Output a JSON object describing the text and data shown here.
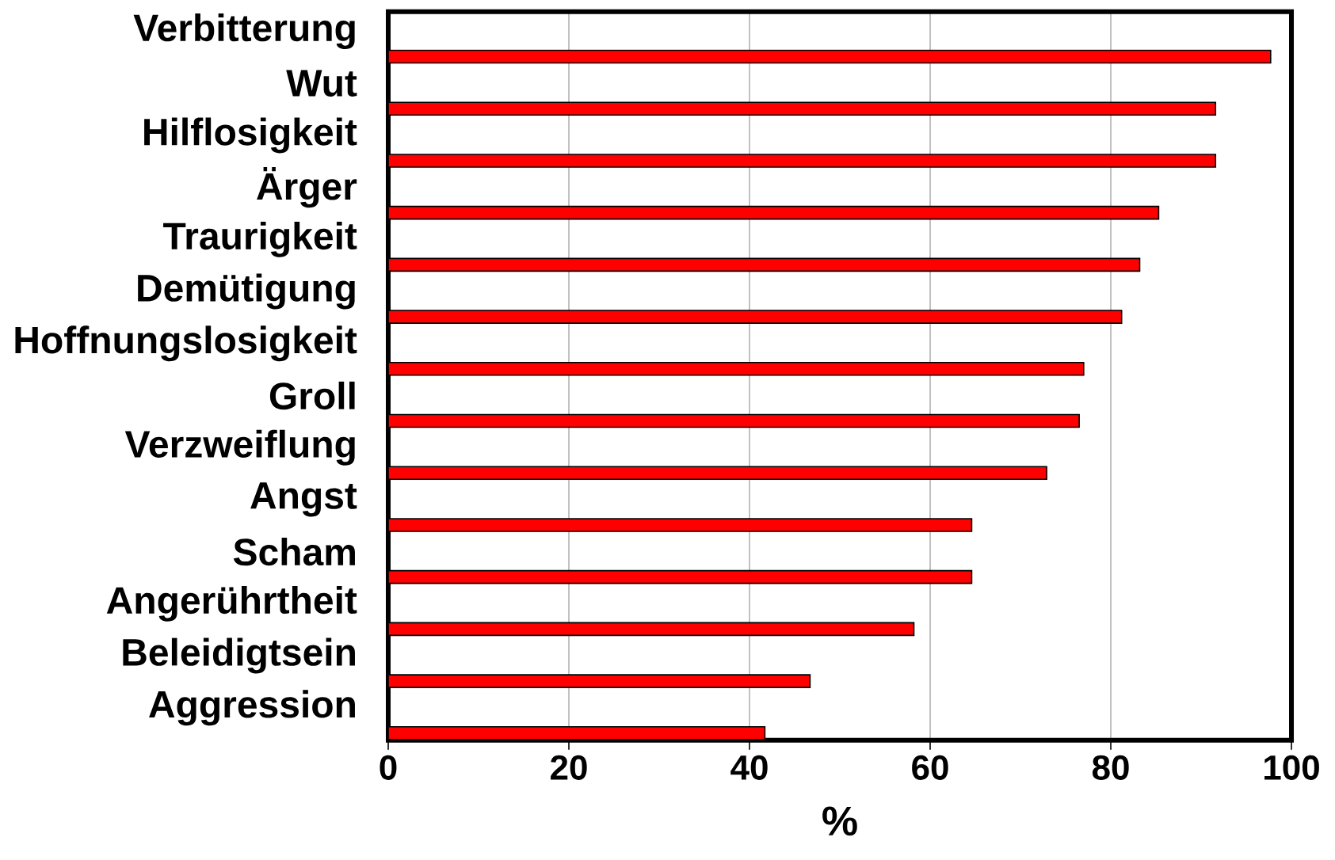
{
  "chart_data": {
    "type": "bar",
    "orientation": "horizontal",
    "xlabel": "%",
    "categories": [
      "Verbitterung",
      "Wut",
      "Hilflosigkeit",
      "Ärger",
      "Traurigkeit",
      "Demütigung",
      "Hoffnungslosigkeit",
      "Groll",
      "Verzweiflung",
      "Angst",
      "Scham",
      "Angerührtheit",
      "Beleidigtsein",
      "Aggression"
    ],
    "values": [
      97.7,
      91.6,
      91.6,
      85.3,
      83.2,
      81.2,
      77.0,
      76.5,
      72.9,
      64.6,
      64.6,
      58.2,
      46.7,
      41.7
    ],
    "color": "#ff0000",
    "xlim": [
      0,
      100
    ],
    "xticks": [
      0,
      20,
      40,
      60,
      80,
      100
    ],
    "grid": "x"
  }
}
